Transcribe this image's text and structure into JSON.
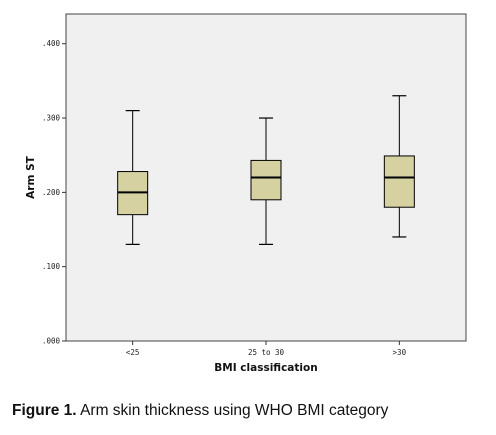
{
  "caption": {
    "label": "Figure 1.",
    "text": "Arm skin thickness using WHO BMI category"
  },
  "colors": {
    "box_fill": "#d6d1a0",
    "plot_background": "#f0f0f0",
    "plot_border": "#444444",
    "whisker": "#000000"
  },
  "chart_data": {
    "type": "boxplot",
    "title": "",
    "xlabel": "BMI classification",
    "ylabel": "Arm ST",
    "ylim": [
      0,
      0.44
    ],
    "yticks": [
      0,
      0.1,
      0.2,
      0.3,
      0.4
    ],
    "ytick_labels": [
      ".000",
      ".100",
      ".200",
      ".300",
      ".400"
    ],
    "grid": false,
    "categories": [
      "<25",
      "25 to 30",
      ">30"
    ],
    "boxes": [
      {
        "category": "<25",
        "min": 0.13,
        "q1": 0.17,
        "median": 0.2,
        "q3": 0.228,
        "max": 0.31
      },
      {
        "category": "25 to 30",
        "min": 0.13,
        "q1": 0.19,
        "median": 0.22,
        "q3": 0.243,
        "max": 0.3
      },
      {
        "category": ">30",
        "min": 0.14,
        "q1": 0.18,
        "median": 0.22,
        "q3": 0.249,
        "max": 0.33
      }
    ]
  }
}
